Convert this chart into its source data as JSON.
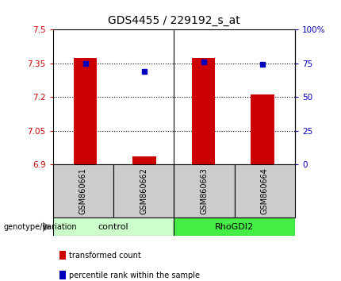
{
  "title": "GDS4455 / 229192_s_at",
  "samples": [
    "GSM860661",
    "GSM860662",
    "GSM860663",
    "GSM860664"
  ],
  "bar_values": [
    7.375,
    6.935,
    7.375,
    7.21
  ],
  "dot_values": [
    75,
    69,
    76,
    74
  ],
  "ylim_left": [
    6.9,
    7.5
  ],
  "ylim_right": [
    0,
    100
  ],
  "yticks_left": [
    6.9,
    7.05,
    7.2,
    7.35,
    7.5
  ],
  "yticks_right": [
    0,
    25,
    50,
    75,
    100
  ],
  "ytick_labels_left": [
    "6.9",
    "7.05",
    "7.2",
    "7.35",
    "7.5"
  ],
  "ytick_labels_right": [
    "0",
    "25",
    "50",
    "75",
    "100%"
  ],
  "bar_color": "#cc0000",
  "dot_color": "#0000bb",
  "bar_bottom": 6.9,
  "bar_width": 0.4,
  "group_colors": {
    "control": "#ccffcc",
    "RhoGDI2": "#44ee44"
  },
  "legend_items": [
    {
      "label": "transformed count",
      "color": "#cc0000"
    },
    {
      "label": "percentile rank within the sample",
      "color": "#0000bb"
    }
  ],
  "left_color": "#cc0000",
  "right_color": "#0000bb",
  "sample_box_color": "#cccccc",
  "genotype_label": "genotype/variation"
}
